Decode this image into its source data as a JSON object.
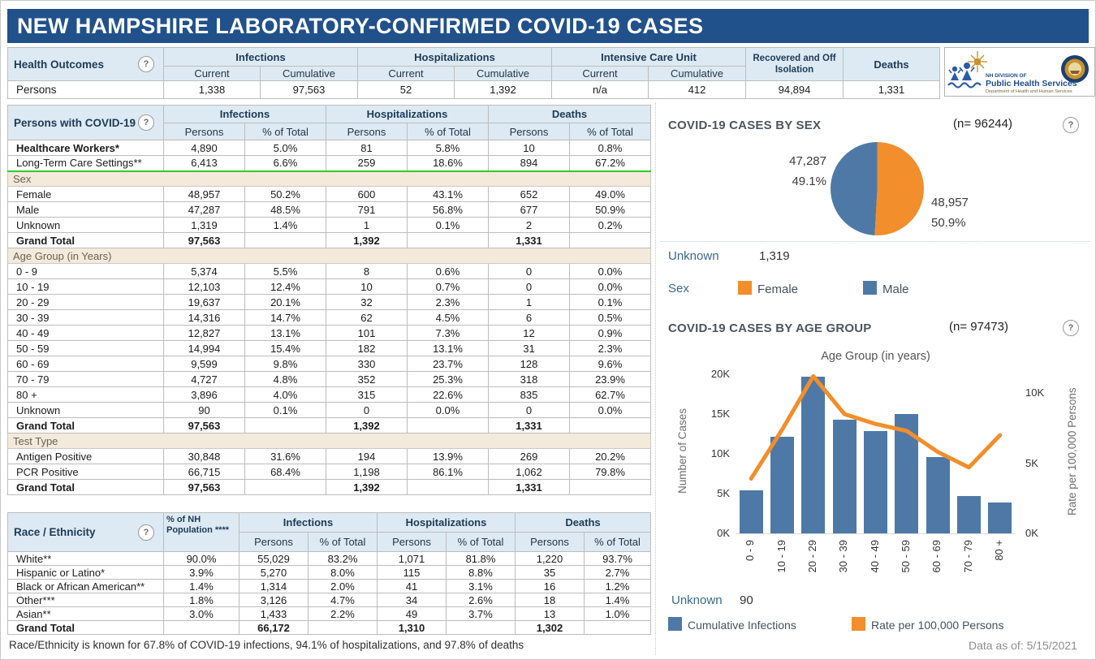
{
  "title": "NEW HAMPSHIRE LABORATORY-CONFIRMED COVID-19 CASES",
  "logo": {
    "line1": "NH DIVISION OF",
    "line2": "Public Health Services",
    "line3": "Department of Health and Human Services"
  },
  "health_outcomes": {
    "label": "Health Outcomes",
    "groups": [
      "Infections",
      "Hospitalizations",
      "Intensive Care Unit"
    ],
    "subcols": [
      "Current",
      "Cumulative"
    ],
    "recovered_header": "Recovered and Off Isolation",
    "deaths_header": "Deaths",
    "row_label": "Persons",
    "values": [
      "1,338",
      "97,563",
      "52",
      "1,392",
      "n/a",
      "412",
      "94,894",
      "1,331"
    ]
  },
  "persons_table": {
    "label": "Persons with COVID-19",
    "groups": [
      "Infections",
      "Hospitalizations",
      "Deaths"
    ],
    "subcols": [
      "Persons",
      "% of Total"
    ],
    "rows": [
      {
        "label": "Healthcare Workers*",
        "bold": true,
        "cells": [
          "4,890",
          "5.0%",
          "81",
          "5.8%",
          "10",
          "0.8%"
        ]
      },
      {
        "label": "Long-Term Care Settings**",
        "green": true,
        "cells": [
          "6,413",
          "6.6%",
          "259",
          "18.6%",
          "894",
          "67.2%"
        ]
      },
      {
        "section": "Sex"
      },
      {
        "label": "Female",
        "cells": [
          "48,957",
          "50.2%",
          "600",
          "43.1%",
          "652",
          "49.0%"
        ]
      },
      {
        "label": "Male",
        "cells": [
          "47,287",
          "48.5%",
          "791",
          "56.8%",
          "677",
          "50.9%"
        ]
      },
      {
        "label": "Unknown",
        "cells": [
          "1,319",
          "1.4%",
          "1",
          "0.1%",
          "2",
          "0.2%"
        ]
      },
      {
        "label": "Grand Total",
        "total": true,
        "cells": [
          "97,563",
          "",
          "1,392",
          "",
          "1,331",
          ""
        ]
      },
      {
        "section": "Age Group (in Years)"
      },
      {
        "label": "0 - 9",
        "cells": [
          "5,374",
          "5.5%",
          "8",
          "0.6%",
          "0",
          "0.0%"
        ]
      },
      {
        "label": "10 - 19",
        "cells": [
          "12,103",
          "12.4%",
          "10",
          "0.7%",
          "0",
          "0.0%"
        ]
      },
      {
        "label": "20 - 29",
        "cells": [
          "19,637",
          "20.1%",
          "32",
          "2.3%",
          "1",
          "0.1%"
        ]
      },
      {
        "label": "30 - 39",
        "cells": [
          "14,316",
          "14.7%",
          "62",
          "4.5%",
          "6",
          "0.5%"
        ]
      },
      {
        "label": "40 - 49",
        "cells": [
          "12,827",
          "13.1%",
          "101",
          "7.3%",
          "12",
          "0.9%"
        ]
      },
      {
        "label": "50 - 59",
        "cells": [
          "14,994",
          "15.4%",
          "182",
          "13.1%",
          "31",
          "2.3%"
        ]
      },
      {
        "label": "60 - 69",
        "cells": [
          "9,599",
          "9.8%",
          "330",
          "23.7%",
          "128",
          "9.6%"
        ]
      },
      {
        "label": "70 - 79",
        "cells": [
          "4,727",
          "4.8%",
          "352",
          "25.3%",
          "318",
          "23.9%"
        ]
      },
      {
        "label": "80 +",
        "cells": [
          "3,896",
          "4.0%",
          "315",
          "22.6%",
          "835",
          "62.7%"
        ]
      },
      {
        "label": "Unknown",
        "cells": [
          "90",
          "0.1%",
          "0",
          "0.0%",
          "0",
          "0.0%"
        ]
      },
      {
        "label": "Grand Total",
        "total": true,
        "cells": [
          "97,563",
          "",
          "1,392",
          "",
          "1,331",
          ""
        ]
      },
      {
        "section": "Test Type"
      },
      {
        "label": "Antigen Positive",
        "cells": [
          "30,848",
          "31.6%",
          "194",
          "13.9%",
          "269",
          "20.2%"
        ]
      },
      {
        "label": "PCR Positive",
        "cells": [
          "66,715",
          "68.4%",
          "1,198",
          "86.1%",
          "1,062",
          "79.8%"
        ]
      },
      {
        "label": "Grand Total",
        "total": true,
        "cells": [
          "97,563",
          "",
          "1,392",
          "",
          "1,331",
          ""
        ]
      }
    ]
  },
  "race_table": {
    "label": "Race / Ethnicity",
    "pop_header": "% of NH Population ****",
    "groups": [
      "Infections",
      "Hospitalizations",
      "Deaths"
    ],
    "subcols": [
      "Persons",
      "% of Total"
    ],
    "rows": [
      {
        "label": "White**",
        "pop": "90.0%",
        "cells": [
          "55,029",
          "83.2%",
          "1,071",
          "81.8%",
          "1,220",
          "93.7%"
        ]
      },
      {
        "label": "Hispanic or Latino*",
        "pop": "3.9%",
        "cells": [
          "5,270",
          "8.0%",
          "115",
          "8.8%",
          "35",
          "2.7%"
        ]
      },
      {
        "label": "Black or African American**",
        "pop": "1.4%",
        "cells": [
          "1,314",
          "2.0%",
          "41",
          "3.1%",
          "16",
          "1.2%"
        ]
      },
      {
        "label": "Other***",
        "pop": "1.8%",
        "cells": [
          "3,126",
          "4.7%",
          "34",
          "2.6%",
          "18",
          "1.4%"
        ]
      },
      {
        "label": "Asian**",
        "pop": "3.0%",
        "cells": [
          "1,433",
          "2.2%",
          "49",
          "3.7%",
          "13",
          "1.0%"
        ]
      },
      {
        "label": "Grand Total",
        "total": true,
        "pop": "",
        "cells": [
          "66,172",
          "",
          "1,310",
          "",
          "1,302",
          ""
        ]
      }
    ]
  },
  "footnote": "Race/Ethnicity is known for 67.8% of COVID-19 infections, 94.1% of hospitalizations, and 97.8% of deaths",
  "sex_chart": {
    "title": "COVID-19 CASES BY SEX",
    "n_label": "(n= 96244)",
    "left_value": "47,287",
    "left_pct": "49.1%",
    "right_value": "48,957",
    "right_pct": "50.9%",
    "unknown_label": "Unknown",
    "unknown_value": "1,319",
    "legend_title": "Sex",
    "legend": [
      {
        "label": "Female",
        "color": "#F28E2B"
      },
      {
        "label": "Male",
        "color": "#4E79A7"
      }
    ]
  },
  "age_chart": {
    "title": "COVID-19 CASES BY AGE GROUP",
    "n_label": "(n= 97473)",
    "axis_title": "Age Group (in years)",
    "y_left_title": "Number of Cases",
    "y_right_title": "Rate per 100,000 Persons",
    "unknown_label": "Unknown",
    "unknown_value": "90",
    "legend": [
      {
        "label": "Cumulative Infections",
        "color": "#4E79A7"
      },
      {
        "label": "Rate per 100,000 Persons",
        "color": "#F28E2B"
      }
    ]
  },
  "data_as_of": "Data as of:  5/15/2021",
  "chart_data": [
    {
      "type": "pie",
      "title": "COVID-19 CASES BY SEX",
      "n": 96244,
      "slices": [
        {
          "label": "Female",
          "value": 48957,
          "pct": 50.9,
          "color": "#F28E2B"
        },
        {
          "label": "Male",
          "value": 47287,
          "pct": 49.1,
          "color": "#4E79A7"
        }
      ],
      "unknown": 1319,
      "legend_position": "bottom"
    },
    {
      "type": "bar",
      "title": "COVID-19 CASES BY AGE GROUP",
      "n": 97473,
      "categories": [
        "0 - 9",
        "10 - 19",
        "20 - 29",
        "30 - 39",
        "40 - 49",
        "50 - 59",
        "60 - 69",
        "70 - 79",
        "80 +"
      ],
      "series": [
        {
          "name": "Cumulative Infections",
          "type": "bar",
          "axis": "left",
          "color": "#4E79A7",
          "values": [
            5374,
            12103,
            19637,
            14316,
            12827,
            14994,
            9599,
            4727,
            3896
          ]
        },
        {
          "name": "Rate per 100,000 Persons",
          "type": "line",
          "axis": "right",
          "color": "#F28E2B",
          "values": [
            3900,
            7400,
            11200,
            8500,
            7800,
            7300,
            5800,
            4700,
            7000
          ],
          "note": "estimated from line position"
        }
      ],
      "xlabel": "Age Group (in years)",
      "ylabel_left": "Number of Cases",
      "ylabel_right": "Rate per 100,000 Persons",
      "ylim_left": [
        0,
        20800
      ],
      "ylim_right": [
        0,
        11800
      ],
      "yticks_left": [
        "0K",
        "5K",
        "10K",
        "15K",
        "20K"
      ],
      "yticks_right": [
        "0K",
        "5K",
        "10K"
      ],
      "unknown": 90,
      "grid": false,
      "legend_position": "bottom"
    }
  ]
}
